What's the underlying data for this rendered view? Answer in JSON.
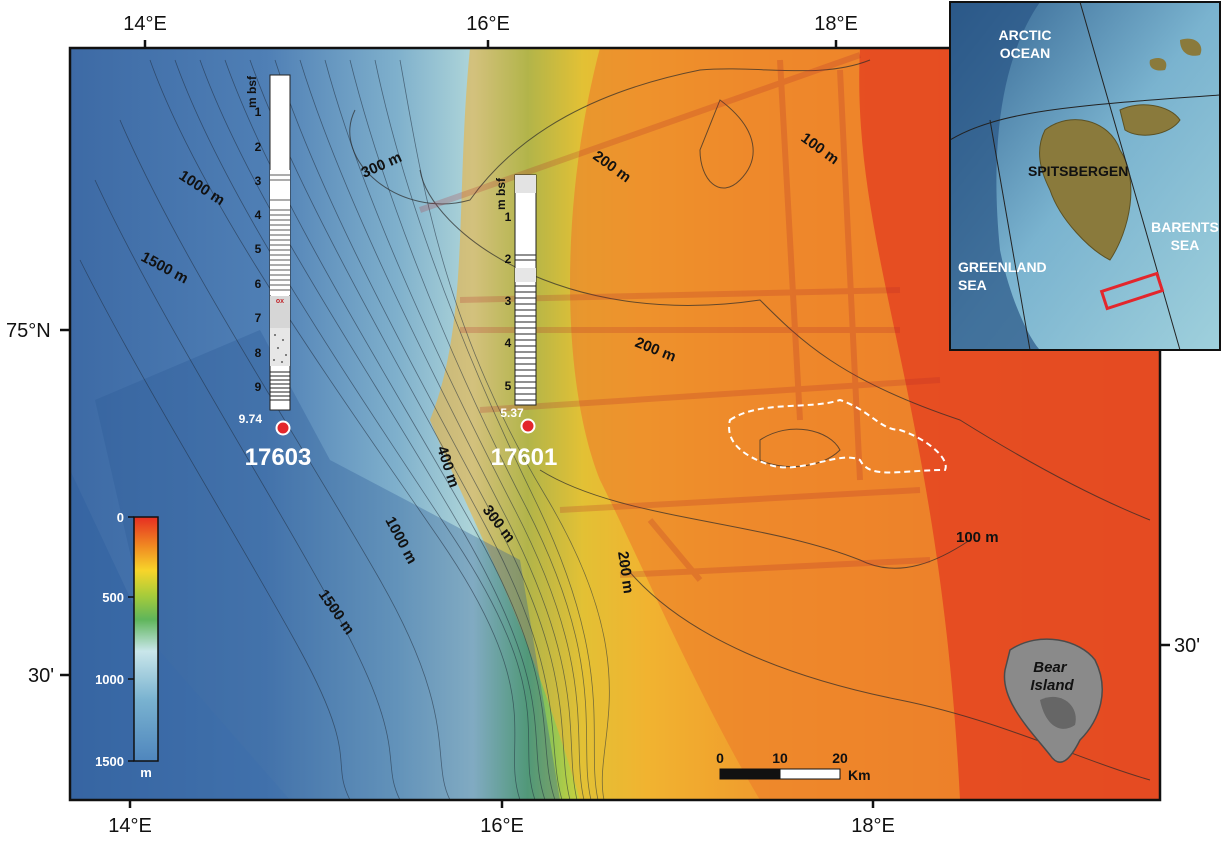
{
  "axes": {
    "top_labels": [
      "14°E",
      "16°E",
      "18°E"
    ],
    "bottom_labels": [
      "14°E",
      "16°E",
      "18°E"
    ],
    "left_labels": [
      "75°N",
      "30'"
    ],
    "right_labels": [
      "30'"
    ]
  },
  "contours": {
    "c1000_upper": "1000 m",
    "c1500_upper": "1500 m",
    "c300_upper": "300 m",
    "c200_upper": "200 m",
    "c100_upper": "100 m",
    "c200_mid": "200 m",
    "c400": "400 m",
    "c300_lower": "300 m",
    "c1000_lower": "1000 m",
    "c200_lower": "200 m",
    "c100_lower": "100 m",
    "c1500_lower": "1500 m"
  },
  "cores": [
    {
      "id": "17603",
      "unit_label": "m bsf",
      "ticks": [
        "1",
        "2",
        "3",
        "4",
        "5",
        "6",
        "7",
        "8",
        "9"
      ],
      "base_depth": "9.74",
      "ox_label": "ox"
    },
    {
      "id": "17601",
      "unit_label": "m bsf",
      "ticks": [
        "1",
        "2",
        "3",
        "4",
        "5"
      ],
      "base_depth": "5.37"
    }
  ],
  "colorbar": {
    "ticks": [
      "0",
      "500",
      "1000",
      "1500"
    ],
    "unit": "m",
    "colors": [
      "#e62e22",
      "#f08a22",
      "#f7d52a",
      "#a8cc3a",
      "#5fb55a",
      "#c9e6ea",
      "#79b2d0",
      "#4f86bd"
    ]
  },
  "scalebar": {
    "ticks": [
      "0",
      "10",
      "20"
    ],
    "unit": "Km"
  },
  "inset": {
    "labels": {
      "arctic": "ARCTIC\nOCEAN",
      "spitsbergen": "SPITSBERGEN",
      "barents": "BARENTS\nSEA",
      "greenland": "GREENLAND\nSEA"
    },
    "study_area_color": "#e3262c"
  },
  "bear_island": "Bear\nIsland",
  "colors": {
    "deep": "#3f6eaa",
    "mid": "#8fc7d6",
    "shelf_green": "#7cc04a",
    "shelf_yellow": "#e8d33a",
    "shallow": "#e2331f",
    "core_marker": "#e3262c"
  }
}
